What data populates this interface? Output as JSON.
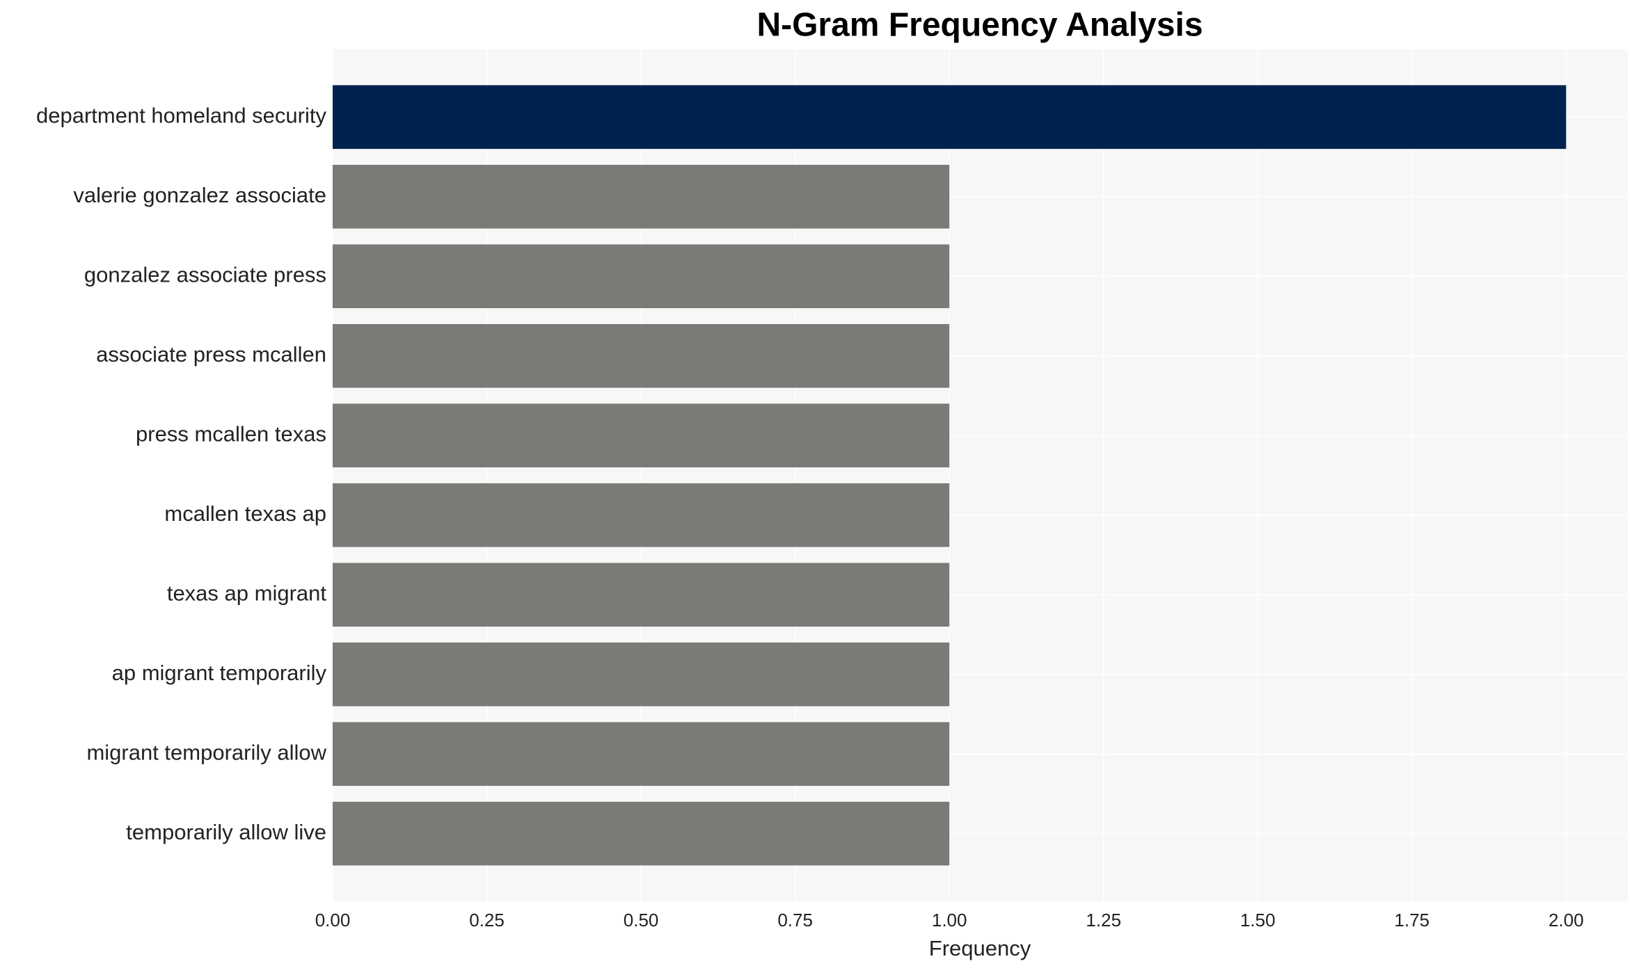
{
  "chart_data": {
    "type": "bar",
    "orientation": "horizontal",
    "title": "N-Gram Frequency Analysis",
    "x_label": "Frequency",
    "categories": [
      "department homeland security",
      "valerie gonzalez associate",
      "gonzalez associate press",
      "associate press mcallen",
      "press mcallen texas",
      "mcallen texas ap",
      "texas ap migrant",
      "ap migrant temporarily",
      "migrant temporarily allow",
      "temporarily allow live"
    ],
    "values": [
      2,
      1,
      1,
      1,
      1,
      1,
      1,
      1,
      1,
      1
    ],
    "colors": [
      "#00224e",
      "#7b7a76",
      "#7b7a76",
      "#7b7a76",
      "#7b7a76",
      "#7b7a76",
      "#7b7a76",
      "#7b7a76",
      "#7b7a76",
      "#7b7a76"
    ],
    "xlim": [
      0,
      2.1
    ],
    "xticks": [
      {
        "value": 0,
        "label": "0.00"
      },
      {
        "value": 0.25,
        "label": "0.25"
      },
      {
        "value": 0.5,
        "label": "0.50"
      },
      {
        "value": 0.75,
        "label": "0.75"
      },
      {
        "value": 1,
        "label": "1.00"
      },
      {
        "value": 1.25,
        "label": "1.25"
      },
      {
        "value": 1.5,
        "label": "1.50"
      },
      {
        "value": 1.75,
        "label": "1.75"
      },
      {
        "value": 2,
        "label": "2.00"
      }
    ],
    "grid": true
  }
}
